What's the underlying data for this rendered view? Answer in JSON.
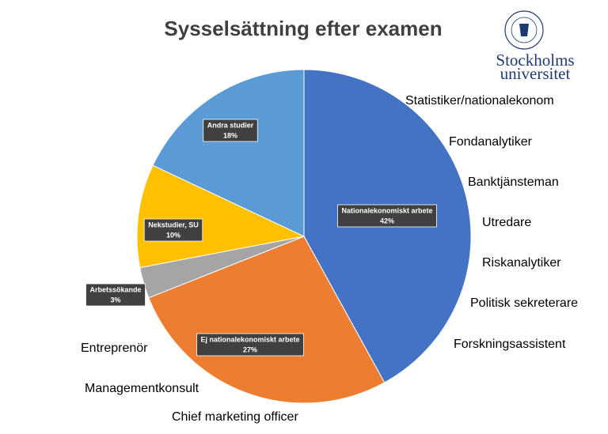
{
  "chart_data": {
    "type": "pie",
    "title": "Sysselsättning efter examen",
    "categories": [
      "Nationalekonomiskt arbete",
      "Ej nationalekonomiskt arbete",
      "Arbetssökande",
      "Nekstudier, SU",
      "Andra studier"
    ],
    "values": [
      42,
      27,
      3,
      10,
      18
    ],
    "value_labels": [
      "42%",
      "27%",
      "3%",
      "10%",
      "18%"
    ],
    "colors": [
      "#4472c4",
      "#ed7d31",
      "#a5a5a5",
      "#ffc000",
      "#5b9bd5"
    ],
    "annotations": [
      "Statistiker/nationalekonom",
      "Fondanalytiker",
      "Banktjänsteman",
      "Utredare",
      "Riskanalytiker",
      "Politisk sekreterare",
      "Forskningsassistent",
      "Entreprenör",
      "Managementkonsult",
      "Chief marketing officer"
    ]
  },
  "logo": {
    "line1": "Stockholms",
    "line2": "universitet"
  }
}
